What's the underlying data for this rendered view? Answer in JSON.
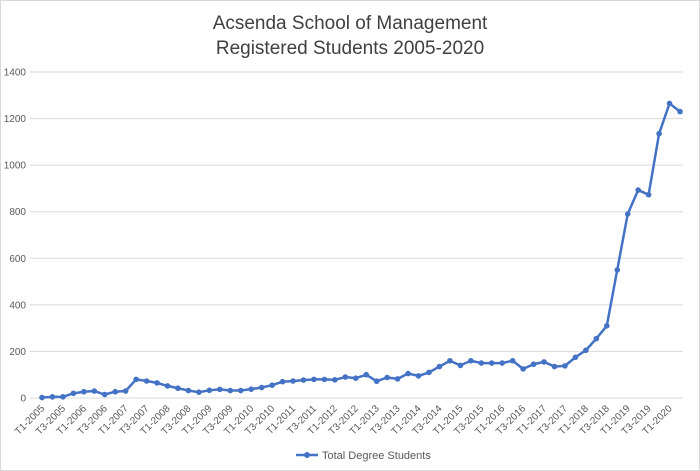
{
  "chart_data": {
    "type": "line",
    "title": [
      "Acsenda School of Management",
      "Registered Students 2005-2020"
    ],
    "xlabel": "",
    "ylabel": "",
    "ylim": [
      0,
      1400
    ],
    "yticks": [
      0,
      200,
      400,
      600,
      800,
      1000,
      1200,
      1400
    ],
    "grid": true,
    "legend_position": "bottom",
    "categories": [
      "T1-2005",
      "T2-2005",
      "T3-2005",
      "T4-2005",
      "T1-2006",
      "T2-2006",
      "T3-2006",
      "T4-2006",
      "T1-2007",
      "T2-2007",
      "T3-2007",
      "T4-2007",
      "T1-2008",
      "T2-2008",
      "T3-2008",
      "T4-2008",
      "T1-2009",
      "T2-2009",
      "T3-2009",
      "T4-2009",
      "T1-2010",
      "T2-2010",
      "T3-2010",
      "T4-2010",
      "T1-2011",
      "T2-2011",
      "T3-2011",
      "T4-2011",
      "T1-2012",
      "T2-2012",
      "T3-2012",
      "T4-2012",
      "T1-2013",
      "T2-2013",
      "T3-2013",
      "T4-2013",
      "T1-2014",
      "T2-2014",
      "T3-2014",
      "T4-2014",
      "T1-2015",
      "T2-2015",
      "T3-2015",
      "T4-2015",
      "T1-2016",
      "T2-2016",
      "T3-2016",
      "T4-2016",
      "T1-2017",
      "T2-2017",
      "T3-2017",
      "T4-2017",
      "T1-2018",
      "T2-2018",
      "T3-2018",
      "T4-2018",
      "T1-2019",
      "T2-2019",
      "T3-2019",
      "T4-2019",
      "T1-2020",
      "T2-2020"
    ],
    "series": [
      {
        "name": "Total  Degree Students",
        "color": "#4472c4",
        "values": [
          2,
          5,
          5,
          20,
          27,
          30,
          15,
          27,
          30,
          80,
          73,
          65,
          52,
          42,
          32,
          25,
          33,
          37,
          32,
          32,
          38,
          45,
          55,
          70,
          73,
          77,
          80,
          80,
          78,
          90,
          85,
          100,
          72,
          88,
          82,
          105,
          95,
          110,
          135,
          160,
          140,
          160,
          150,
          150,
          150,
          160,
          125,
          145,
          155,
          135,
          138,
          175,
          205,
          255,
          310,
          550,
          790,
          893,
          873,
          1135,
          1265,
          1230
        ]
      }
    ]
  }
}
